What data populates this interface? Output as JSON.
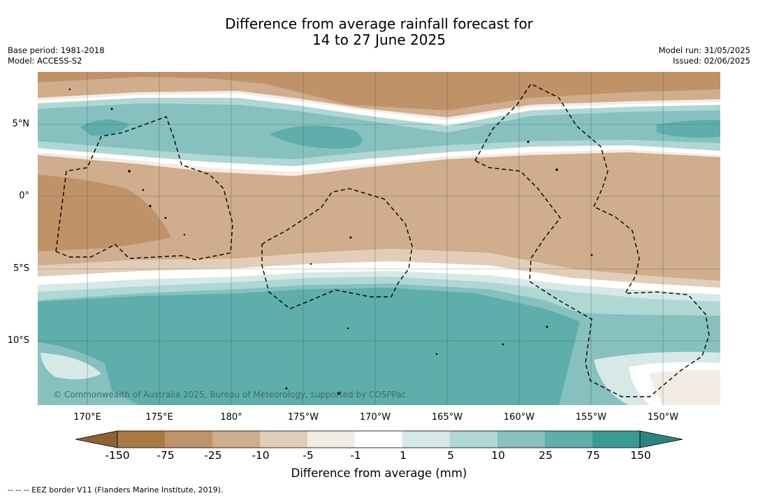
{
  "title": {
    "line1": "Difference from average rainfall forecast for",
    "line2": "14 to 27 June 2025"
  },
  "meta_left": {
    "base_period": "Base period: 1981-2018",
    "model": "Model: ACCESS-S2"
  },
  "meta_right": {
    "model_run": "Model run: 31/05/2025",
    "issued": "Issued: 02/06/2025"
  },
  "map": {
    "lat_labels": [
      "5°N",
      "0°",
      "5°S",
      "10°S"
    ],
    "lon_labels": [
      "170°E",
      "175°E",
      "180°",
      "175°W",
      "170°W",
      "165°W",
      "160°W",
      "155°W",
      "150°W"
    ],
    "copyright": "© Commonwealth of Australia 2025, Bureau of Meteorology, supported by COSPPac"
  },
  "colorbar": {
    "ticks": [
      "-150",
      "-75",
      "-25",
      "-10",
      "-5",
      "-1",
      "1",
      "5",
      "10",
      "25",
      "75",
      "150"
    ],
    "colors": [
      "#a97a44",
      "#c09268",
      "#d0ad8c",
      "#e2ceb8",
      "#f2ece4",
      "#ffffff",
      "#d6e9e6",
      "#afd7d4",
      "#86c1bf",
      "#5eaeab",
      "#399a96"
    ],
    "extend_low_color": "#8f6233",
    "extend_high_color": "#2a8580",
    "label": "Difference from average (mm)"
  },
  "legend": {
    "text": "--  --  -- EEZ border V11 (Flanders Marine Institute, 2019)."
  }
}
